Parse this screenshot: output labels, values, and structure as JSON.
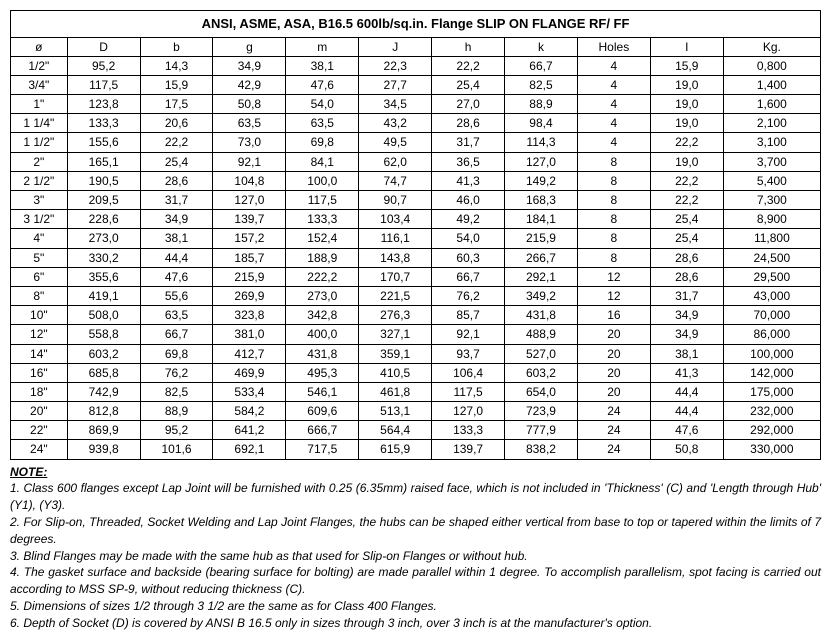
{
  "title": "ANSI, ASME, ASA, B16.5 600lb/sq.in. Flange SLIP ON FLANGE RF/ FF",
  "columns": [
    "ø",
    "D",
    "b",
    "g",
    "m",
    "J",
    "h",
    "k",
    "Holes",
    "I",
    "Kg."
  ],
  "col_widths": [
    "7%",
    "9%",
    "9%",
    "9%",
    "9%",
    "9%",
    "9%",
    "9%",
    "9%",
    "9%",
    "12%"
  ],
  "rows": [
    [
      "1/2\"",
      "95,2",
      "14,3",
      "34,9",
      "38,1",
      "22,3",
      "22,2",
      "66,7",
      "4",
      "15,9",
      "0,800"
    ],
    [
      "3/4\"",
      "117,5",
      "15,9",
      "42,9",
      "47,6",
      "27,7",
      "25,4",
      "82,5",
      "4",
      "19,0",
      "1,400"
    ],
    [
      "1\"",
      "123,8",
      "17,5",
      "50,8",
      "54,0",
      "34,5",
      "27,0",
      "88,9",
      "4",
      "19,0",
      "1,600"
    ],
    [
      "1 1/4\"",
      "133,3",
      "20,6",
      "63,5",
      "63,5",
      "43,2",
      "28,6",
      "98,4",
      "4",
      "19,0",
      "2,100"
    ],
    [
      "1 1/2\"",
      "155,6",
      "22,2",
      "73,0",
      "69,8",
      "49,5",
      "31,7",
      "114,3",
      "4",
      "22,2",
      "3,100"
    ],
    [
      "2\"",
      "165,1",
      "25,4",
      "92,1",
      "84,1",
      "62,0",
      "36,5",
      "127,0",
      "8",
      "19,0",
      "3,700"
    ],
    [
      "2 1/2\"",
      "190,5",
      "28,6",
      "104,8",
      "100,0",
      "74,7",
      "41,3",
      "149,2",
      "8",
      "22,2",
      "5,400"
    ],
    [
      "3\"",
      "209,5",
      "31,7",
      "127,0",
      "117,5",
      "90,7",
      "46,0",
      "168,3",
      "8",
      "22,2",
      "7,300"
    ],
    [
      "3 1/2\"",
      "228,6",
      "34,9",
      "139,7",
      "133,3",
      "103,4",
      "49,2",
      "184,1",
      "8",
      "25,4",
      "8,900"
    ],
    [
      "4\"",
      "273,0",
      "38,1",
      "157,2",
      "152,4",
      "116,1",
      "54,0",
      "215,9",
      "8",
      "25,4",
      "11,800"
    ],
    [
      "5\"",
      "330,2",
      "44,4",
      "185,7",
      "188,9",
      "143,8",
      "60,3",
      "266,7",
      "8",
      "28,6",
      "24,500"
    ],
    [
      "6\"",
      "355,6",
      "47,6",
      "215,9",
      "222,2",
      "170,7",
      "66,7",
      "292,1",
      "12",
      "28,6",
      "29,500"
    ],
    [
      "8\"",
      "419,1",
      "55,6",
      "269,9",
      "273,0",
      "221,5",
      "76,2",
      "349,2",
      "12",
      "31,7",
      "43,000"
    ],
    [
      "10\"",
      "508,0",
      "63,5",
      "323,8",
      "342,8",
      "276,3",
      "85,7",
      "431,8",
      "16",
      "34,9",
      "70,000"
    ],
    [
      "12\"",
      "558,8",
      "66,7",
      "381,0",
      "400,0",
      "327,1",
      "92,1",
      "488,9",
      "20",
      "34,9",
      "86,000"
    ],
    [
      "14\"",
      "603,2",
      "69,8",
      "412,7",
      "431,8",
      "359,1",
      "93,7",
      "527,0",
      "20",
      "38,1",
      "100,000"
    ],
    [
      "16\"",
      "685,8",
      "76,2",
      "469,9",
      "495,3",
      "410,5",
      "106,4",
      "603,2",
      "20",
      "41,3",
      "142,000"
    ],
    [
      "18\"",
      "742,9",
      "82,5",
      "533,4",
      "546,1",
      "461,8",
      "117,5",
      "654,0",
      "20",
      "44,4",
      "175,000"
    ],
    [
      "20\"",
      "812,8",
      "88,9",
      "584,2",
      "609,6",
      "513,1",
      "127,0",
      "723,9",
      "24",
      "44,4",
      "232,000"
    ],
    [
      "22\"",
      "869,9",
      "95,2",
      "641,2",
      "666,7",
      "564,4",
      "133,3",
      "777,9",
      "24",
      "47,6",
      "292,000"
    ],
    [
      "24\"",
      "939,8",
      "101,6",
      "692,1",
      "717,5",
      "615,9",
      "139,7",
      "838,2",
      "24",
      "50,8",
      "330,000"
    ]
  ],
  "notes_label": "NOTE:",
  "notes": [
    "1. Class 600 flanges except Lap Joint will be furnished with 0.25 (6.35mm) raised face, which is not included in 'Thickness' (C) and 'Length through Hub' (Y1), (Y3).",
    "2. For Slip-on, Threaded, Socket Welding and Lap Joint Flanges, the hubs can be shaped either vertical from base to top or tapered within the limits of 7 degrees.",
    "3. Blind Flanges may be made with the same hub as that used for Slip-on Flanges or without hub.",
    "4. The gasket surface and backside (bearing surface for bolting) are made parallel within 1 degree. To accomplish parallelism, spot facing is carried out according to MSS SP-9, without reducing thickness (C).",
    "5. Dimensions of sizes 1/2 through 3 1/2 are the same as for Class 400 Flanges.",
    "6. Depth of Socket (D) is covered by ANSI B 16.5 only in sizes through 3 inch, over 3 inch is at the manufacturer's option."
  ]
}
